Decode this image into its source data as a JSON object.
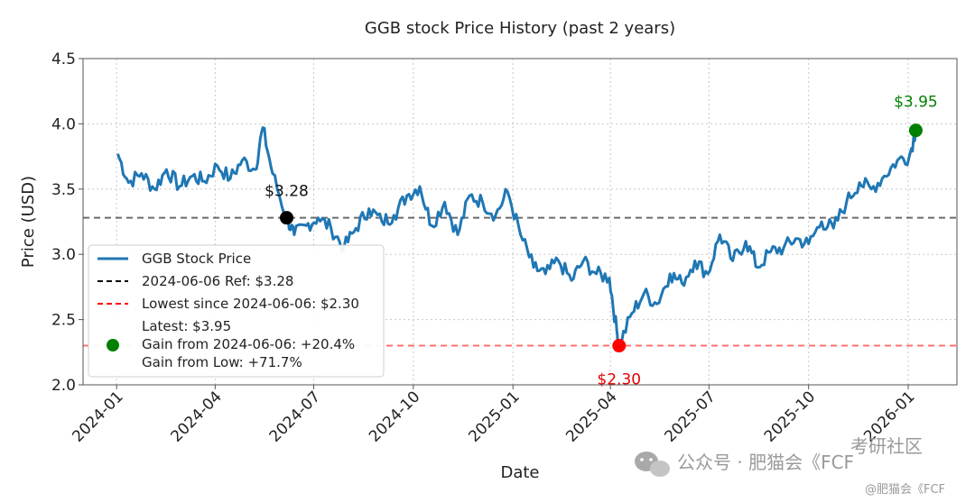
{
  "colors": {
    "series": "#1f77b4",
    "ref_line": "#3a3a3a",
    "low_line": "#ff4d4d",
    "ref_point": "#000000",
    "low_point": "#ff0000",
    "latest_point": "#008000",
    "low_text": "#e60000",
    "latest_text": "#008000"
  },
  "chart_data": {
    "type": "line",
    "title": "GGB stock Price History (past 2 years)",
    "xlabel": "Date",
    "ylabel": "Price (USD)",
    "ylim": [
      2.0,
      4.5
    ],
    "yticks": [
      "2.0",
      "2.5",
      "3.0",
      "3.5",
      "4.0",
      "4.5"
    ],
    "xlim": [
      "2023-12-01",
      "2026-02-15"
    ],
    "xticks": [
      "2024-01",
      "2024-04",
      "2024-07",
      "2024-10",
      "2025-01",
      "2025-04",
      "2025-07",
      "2025-10",
      "2026-01"
    ],
    "grid": true,
    "series": [
      {
        "name": "GGB Stock Price",
        "x": [
          "2024-01-02",
          "2024-01-12",
          "2024-01-24",
          "2024-02-05",
          "2024-02-16",
          "2024-02-28",
          "2024-03-11",
          "2024-03-22",
          "2024-04-03",
          "2024-04-15",
          "2024-04-26",
          "2024-05-08",
          "2024-05-15",
          "2024-05-24",
          "2024-06-06",
          "2024-06-13",
          "2024-06-24",
          "2024-07-05",
          "2024-07-17",
          "2024-07-29",
          "2024-08-09",
          "2024-08-21",
          "2024-09-02",
          "2024-09-13",
          "2024-09-25",
          "2024-10-07",
          "2024-10-18",
          "2024-10-30",
          "2024-11-11",
          "2024-11-22",
          "2024-12-04",
          "2024-12-16",
          "2024-12-27",
          "2025-01-08",
          "2025-01-20",
          "2025-01-31",
          "2025-02-12",
          "2025-02-24",
          "2025-03-07",
          "2025-03-19",
          "2025-03-31",
          "2025-04-07",
          "2025-04-09",
          "2025-04-21",
          "2025-05-02",
          "2025-05-14",
          "2025-05-26",
          "2025-06-06",
          "2025-06-18",
          "2025-06-30",
          "2025-07-11",
          "2025-07-23",
          "2025-08-04",
          "2025-08-15",
          "2025-08-27",
          "2025-09-08",
          "2025-09-19",
          "2025-10-01",
          "2025-10-13",
          "2025-10-24",
          "2025-11-05",
          "2025-11-17",
          "2025-11-28",
          "2025-12-10",
          "2025-12-22",
          "2026-01-02",
          "2026-01-08"
        ],
        "values": [
          3.77,
          3.55,
          3.62,
          3.5,
          3.65,
          3.52,
          3.6,
          3.56,
          3.68,
          3.58,
          3.72,
          3.65,
          3.97,
          3.62,
          3.28,
          3.15,
          3.22,
          3.28,
          3.2,
          3.05,
          3.2,
          3.35,
          3.25,
          3.3,
          3.45,
          3.52,
          3.22,
          3.4,
          3.15,
          3.45,
          3.4,
          3.3,
          3.48,
          3.15,
          2.9,
          2.85,
          2.95,
          2.8,
          2.95,
          2.85,
          2.82,
          2.4,
          2.3,
          2.55,
          2.7,
          2.62,
          2.85,
          2.78,
          2.95,
          2.85,
          3.15,
          2.95,
          3.1,
          2.9,
          3.02,
          3.05,
          3.12,
          3.08,
          3.25,
          3.2,
          3.4,
          3.55,
          3.5,
          3.6,
          3.72,
          3.75,
          3.95
        ]
      }
    ],
    "reference_lines": [
      {
        "label": "2024-06-06 Ref: $3.28",
        "y": 3.28,
        "style": "dashed"
      },
      {
        "label": "Lowest since 2024-06-06: $2.30",
        "y": 2.3,
        "style": "dashed"
      }
    ],
    "points": [
      {
        "name": "reference",
        "x": "2024-06-06",
        "y": 3.28,
        "label": "$3.28"
      },
      {
        "name": "lowest",
        "x": "2025-04-09",
        "y": 2.3,
        "label": "$2.30"
      },
      {
        "name": "latest",
        "x": "2026-01-08",
        "y": 3.95,
        "label": "$3.95"
      }
    ],
    "legend": {
      "placement": "center-left",
      "entries": [
        "GGB Stock Price",
        "2024-06-06 Ref: $3.28",
        "Lowest since 2024-06-06: $2.30"
      ],
      "latest_entry": [
        "Latest: $3.95",
        "Gain from 2024-06-06: +20.4%",
        "Gain from Low: +71.7%"
      ]
    }
  },
  "watermark": {
    "main": "公众号 · 肥猫会《FCF",
    "corner": "考研社区",
    "bottom": "@肥猫会《FCF"
  }
}
